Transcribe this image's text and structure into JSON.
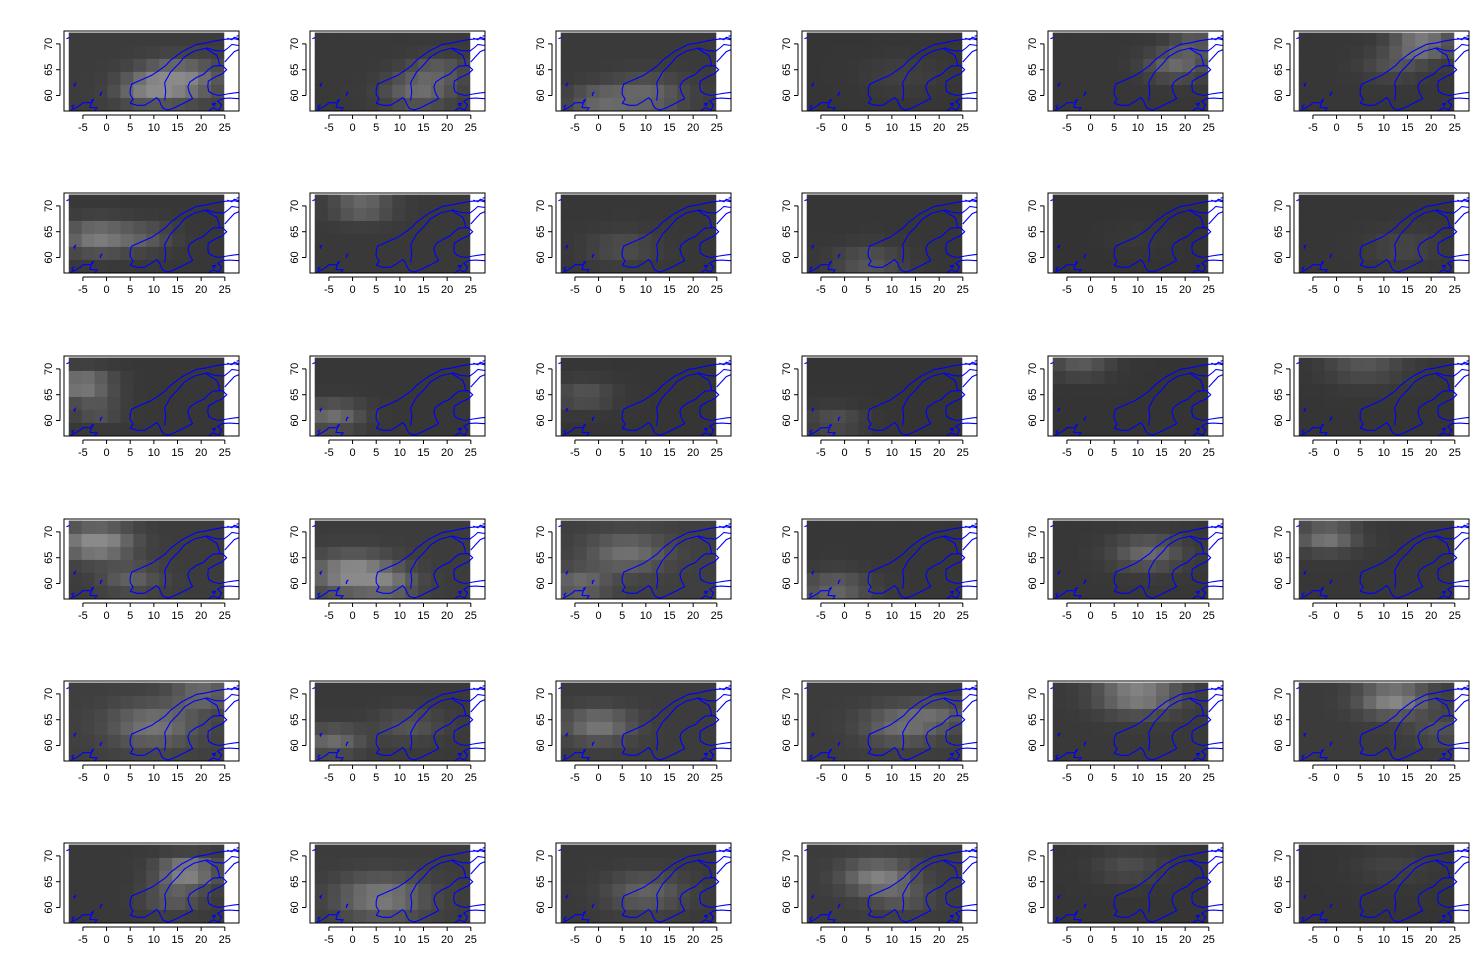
{
  "figure": {
    "rows": 6,
    "cols": 6,
    "panel_count": 36
  },
  "colors": {
    "background": "#ffffff",
    "coastline": "#0000ff",
    "field_low": "#2e2e2e",
    "field_high": "#8a8a8a",
    "axis": "#000000"
  },
  "chart_data": {
    "type": "heatmap",
    "description_of_series": "36 small multiple map panels, grayscale gridded field over Scandinavia with blue coastlines",
    "x_ticks": [
      -5,
      0,
      5,
      10,
      15,
      20,
      25
    ],
    "y_ticks": [
      60,
      65,
      70
    ],
    "xlim": [
      -9,
      28
    ],
    "ylim": [
      57,
      72.5
    ],
    "grid": {
      "lon_start": -8,
      "lon_end": 24.8,
      "lat_start": 57.1,
      "lat_end": 72.2,
      "n_cols": 12,
      "n_rows": 6
    },
    "panels": [
      {
        "hotspots": [
          [
            15,
            63,
            0.9,
            8
          ],
          [
            8,
            61,
            0.5,
            6
          ]
        ],
        "base": 0.15
      },
      {
        "hotspots": [
          [
            14,
            61,
            0.55,
            7
          ],
          [
            18,
            65,
            0.35,
            6
          ]
        ],
        "base": 0.12
      },
      {
        "hotspots": [
          [
            10,
            60,
            0.5,
            8
          ],
          [
            0,
            59,
            0.45,
            6
          ]
        ],
        "base": 0.13
      },
      {
        "hotspots": [
          [
            12,
            64,
            0.12,
            8
          ]
        ],
        "base": 0.08
      },
      {
        "hotspots": [
          [
            18,
            66,
            0.55,
            6
          ],
          [
            22,
            70,
            0.4,
            5
          ]
        ],
        "base": 0.1
      },
      {
        "hotspots": [
          [
            18,
            70,
            0.8,
            6
          ],
          [
            12,
            66,
            0.3,
            6
          ]
        ],
        "base": 0.1
      },
      {
        "hotspots": [
          [
            -2,
            64,
            0.75,
            7
          ],
          [
            8,
            64,
            0.35,
            6
          ]
        ],
        "base": 0.1
      },
      {
        "hotspots": [
          [
            2,
            70,
            0.55,
            6
          ]
        ],
        "base": 0.12
      },
      {
        "hotspots": [
          [
            5,
            62,
            0.25,
            7
          ]
        ],
        "base": 0.1
      },
      {
        "hotspots": [
          [
            5,
            59,
            0.35,
            7
          ]
        ],
        "base": 0.09
      },
      {
        "hotspots": [
          [
            10,
            64,
            0.06,
            8
          ]
        ],
        "base": 0.05
      },
      {
        "hotspots": [
          [
            14,
            62,
            0.18,
            7
          ]
        ],
        "base": 0.09
      },
      {
        "hotspots": [
          [
            -5,
            67,
            0.8,
            6
          ],
          [
            -2,
            62,
            0.35,
            5
          ]
        ],
        "base": 0.1
      },
      {
        "hotspots": [
          [
            -4,
            61,
            0.6,
            6
          ]
        ],
        "base": 0.1
      },
      {
        "hotspots": [
          [
            -3,
            65,
            0.35,
            6
          ]
        ],
        "base": 0.08
      },
      {
        "hotspots": [
          [
            -2,
            60,
            0.3,
            6
          ]
        ],
        "base": 0.07
      },
      {
        "hotspots": [
          [
            -2,
            71,
            0.4,
            6
          ]
        ],
        "base": 0.07
      },
      {
        "hotspots": [
          [
            6,
            71,
            0.35,
            8
          ]
        ],
        "base": 0.08
      },
      {
        "hotspots": [
          [
            -2,
            68,
            1.0,
            7
          ],
          [
            5,
            61,
            0.4,
            6
          ]
        ],
        "base": 0.15
      },
      {
        "hotspots": [
          [
            0,
            62,
            0.95,
            8
          ],
          [
            8,
            60,
            0.45,
            6
          ]
        ],
        "base": 0.15
      },
      {
        "hotspots": [
          [
            6,
            66,
            0.55,
            8
          ],
          [
            -4,
            60,
            0.5,
            6
          ]
        ],
        "base": 0.18
      },
      {
        "hotspots": [
          [
            -2,
            59,
            0.5,
            7
          ]
        ],
        "base": 0.1
      },
      {
        "hotspots": [
          [
            12,
            66,
            0.55,
            7
          ]
        ],
        "base": 0.1
      },
      {
        "hotspots": [
          [
            -2,
            69,
            0.7,
            6
          ]
        ],
        "base": 0.1
      },
      {
        "hotspots": [
          [
            10,
            64,
            0.6,
            9
          ],
          [
            20,
            70,
            0.5,
            6
          ]
        ],
        "base": 0.18
      },
      {
        "hotspots": [
          [
            -4,
            61,
            0.55,
            6
          ],
          [
            12,
            64,
            0.3,
            7
          ]
        ],
        "base": 0.12
      },
      {
        "hotspots": [
          [
            0,
            64,
            0.65,
            7
          ]
        ],
        "base": 0.15
      },
      {
        "hotspots": [
          [
            12,
            64,
            0.55,
            8
          ],
          [
            20,
            66,
            0.35,
            6
          ]
        ],
        "base": 0.15
      },
      {
        "hotspots": [
          [
            10,
            70,
            0.85,
            8
          ]
        ],
        "base": 0.12
      },
      {
        "hotspots": [
          [
            12,
            69,
            0.85,
            7
          ],
          [
            22,
            63,
            0.25,
            6
          ]
        ],
        "base": 0.14
      },
      {
        "hotspots": [
          [
            17,
            67,
            0.9,
            6
          ],
          [
            14,
            62,
            0.4,
            6
          ]
        ],
        "base": 0.12
      },
      {
        "hotspots": [
          [
            6,
            62,
            0.7,
            9
          ]
        ],
        "base": 0.15
      },
      {
        "hotspots": [
          [
            10,
            63,
            0.45,
            8
          ]
        ],
        "base": 0.12
      },
      {
        "hotspots": [
          [
            7,
            66,
            0.75,
            7
          ],
          [
            12,
            62,
            0.3,
            6
          ]
        ],
        "base": 0.15
      },
      {
        "hotspots": [
          [
            8,
            68,
            0.25,
            7
          ]
        ],
        "base": 0.08
      },
      {
        "hotspots": [
          [
            12,
            68,
            0.15,
            8
          ]
        ],
        "base": 0.07
      }
    ]
  }
}
